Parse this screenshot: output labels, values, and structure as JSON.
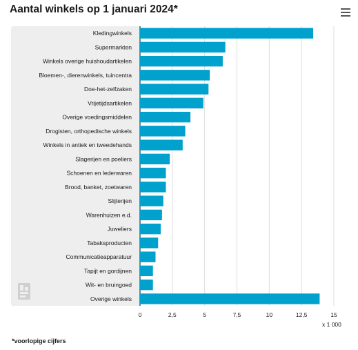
{
  "header": {
    "title": "Aantal winkels op 1 januari 2024*",
    "menu_icon": "hamburger-menu-icon"
  },
  "footnote": "*voorlopige cijfers",
  "colors": {
    "bar": "#00a1cd",
    "panel": "#eeeeee",
    "grid": "#dddddd",
    "axis": "#333333"
  },
  "chart_data": {
    "type": "bar",
    "orientation": "horizontal",
    "title": "Aantal winkels op 1 januari 2024*",
    "xlabel": "",
    "ylabel": "",
    "unit_label": "x 1 000",
    "xlim": [
      0,
      15
    ],
    "grid": true,
    "x_ticks": [
      0,
      2.5,
      5,
      7.5,
      10,
      12.5,
      15
    ],
    "x_tick_labels": [
      "0",
      "2,5",
      "5",
      "7,5",
      "10",
      "12,5",
      "15"
    ],
    "categories": [
      "Kledingwinkels",
      "Supermarkten",
      "Winkels overige huishoudartikelen",
      "Bloemen-, dierenwinkels, tuincentra",
      "Doe-het-zelfzaken",
      "Vrijetijdsartikelen",
      "Overige voedingsmiddelen",
      "Drogisten, orthopedische winkels",
      "Winkels in antiek en tweedehands",
      "Slagerijen en poeliers",
      "Schoenen en lederwaren",
      "Brood, banket, zoetwaren",
      "Slijterijen",
      "Warenhuizen e.d.",
      "Juweliers",
      "Tabaksproducten",
      "Communicatieapparatuur",
      "Tapijt en gordijnen",
      "Wit- en bruingoed",
      "Overige winkels"
    ],
    "values": [
      13.4,
      6.6,
      6.4,
      5.4,
      5.3,
      4.9,
      3.9,
      3.5,
      3.3,
      2.3,
      2.0,
      2.0,
      1.8,
      1.7,
      1.6,
      1.4,
      1.2,
      1.0,
      1.0,
      13.9
    ]
  }
}
